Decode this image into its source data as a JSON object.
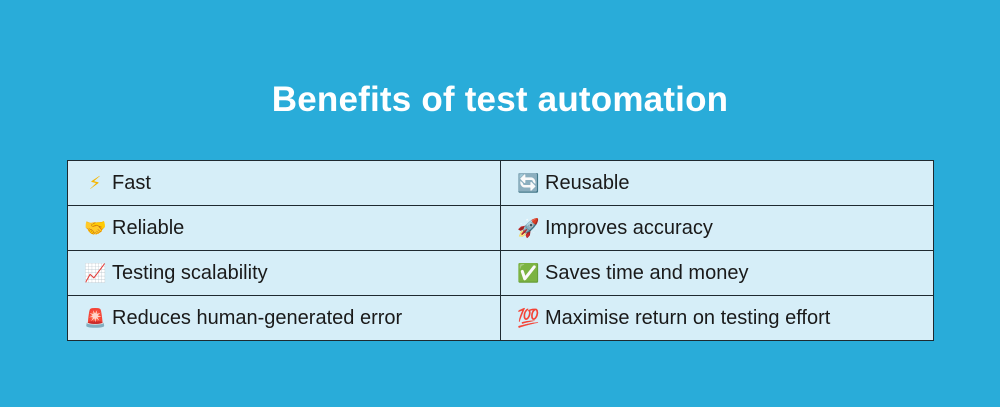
{
  "title": "Benefits of test automation",
  "rows": [
    [
      {
        "icon": "lightning-icon",
        "glyph": "⚡",
        "color": "#f5b500",
        "label": "Fast"
      },
      {
        "icon": "repeat-icon",
        "glyph": "🔄",
        "color": "#3b7fd6",
        "label": "Reusable"
      }
    ],
    [
      {
        "icon": "handshake-icon",
        "glyph": "🤝",
        "color": "#f2b233",
        "label": "Reliable"
      },
      {
        "icon": "rocket-icon",
        "glyph": "🚀",
        "color": "#c33",
        "label": "Improves accuracy"
      }
    ],
    [
      {
        "icon": "chart-increasing-icon",
        "glyph": "📈",
        "color": "#d22",
        "label": "Testing scalability"
      },
      {
        "icon": "check-mark-icon",
        "glyph": "✅",
        "color": "#2eaa3a",
        "label": "Saves time and money"
      }
    ],
    [
      {
        "icon": "siren-icon",
        "glyph": "🚨",
        "color": "#e22",
        "label": "Reduces human-generated error"
      },
      {
        "icon": "hundred-points-icon",
        "glyph": "💯",
        "color": "#e22",
        "label": "Maximise return on testing effort"
      }
    ]
  ]
}
